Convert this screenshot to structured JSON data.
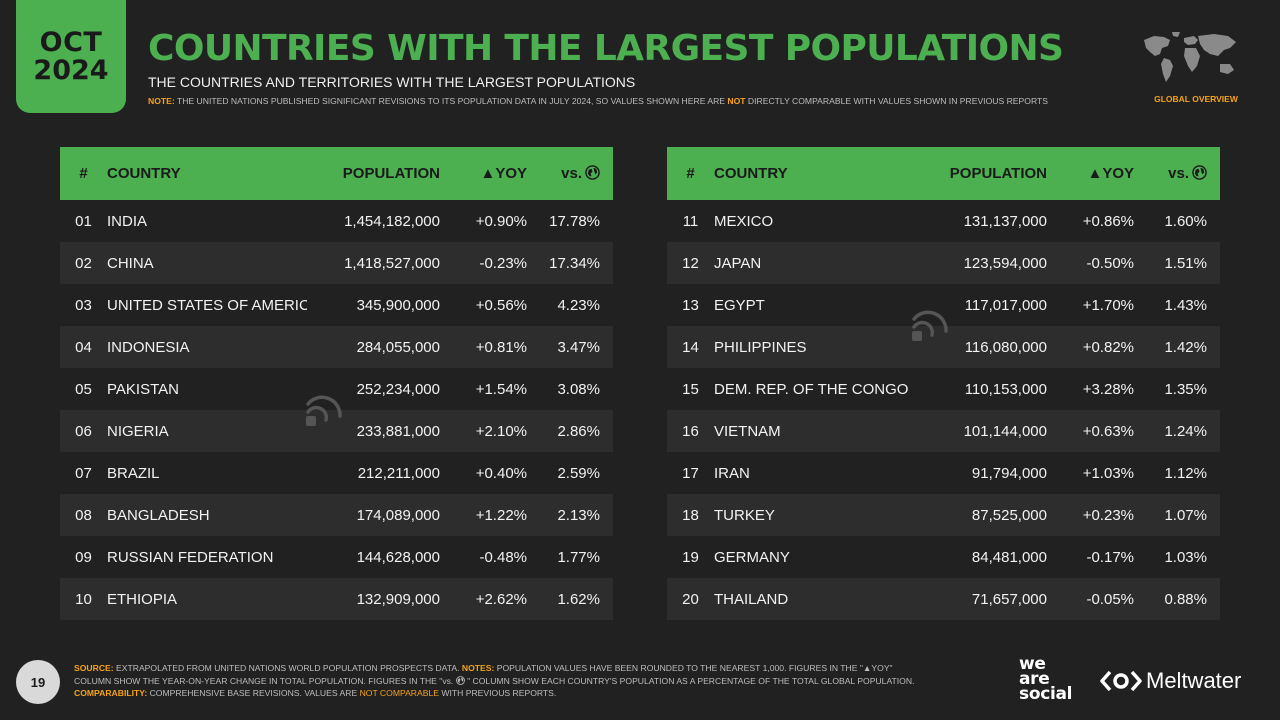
{
  "header": {
    "month": "OCT",
    "year": "2024",
    "title": "COUNTRIES WITH THE LARGEST POPULATIONS",
    "subtitle": "THE COUNTRIES AND TERRITORIES WITH THE LARGEST POPULATIONS",
    "note_label": "NOTE:",
    "note_text_1": " THE UNITED NATIONS PUBLISHED SIGNIFICANT REVISIONS TO ITS POPULATION DATA IN JULY 2024, SO VALUES SHOWN HERE ARE ",
    "note_not": "NOT",
    "note_text_2": " DIRECTLY COMPARABLE WITH VALUES SHOWN IN PREVIOUS REPORTS",
    "section_label": "GLOBAL OVERVIEW"
  },
  "columns": {
    "rank": "#",
    "country": "COUNTRY",
    "population": "POPULATION",
    "yoy": "▲YOY",
    "share": "vs."
  },
  "left_rows": [
    {
      "rank": "01",
      "country": "INDIA",
      "population": "1,454,182,000",
      "yoy": "+0.90%",
      "share": "17.78%"
    },
    {
      "rank": "02",
      "country": "CHINA",
      "population": "1,418,527,000",
      "yoy": "-0.23%",
      "share": "17.34%"
    },
    {
      "rank": "03",
      "country": "UNITED STATES OF AMERICA",
      "population": "345,900,000",
      "yoy": "+0.56%",
      "share": "4.23%"
    },
    {
      "rank": "04",
      "country": "INDONESIA",
      "population": "284,055,000",
      "yoy": "+0.81%",
      "share": "3.47%"
    },
    {
      "rank": "05",
      "country": "PAKISTAN",
      "population": "252,234,000",
      "yoy": "+1.54%",
      "share": "3.08%"
    },
    {
      "rank": "06",
      "country": "NIGERIA",
      "population": "233,881,000",
      "yoy": "+2.10%",
      "share": "2.86%"
    },
    {
      "rank": "07",
      "country": "BRAZIL",
      "population": "212,211,000",
      "yoy": "+0.40%",
      "share": "2.59%"
    },
    {
      "rank": "08",
      "country": "BANGLADESH",
      "population": "174,089,000",
      "yoy": "+1.22%",
      "share": "2.13%"
    },
    {
      "rank": "09",
      "country": "RUSSIAN FEDERATION",
      "population": "144,628,000",
      "yoy": "-0.48%",
      "share": "1.77%"
    },
    {
      "rank": "10",
      "country": "ETHIOPIA",
      "population": "132,909,000",
      "yoy": "+2.62%",
      "share": "1.62%"
    }
  ],
  "right_rows": [
    {
      "rank": "11",
      "country": "MEXICO",
      "population": "131,137,000",
      "yoy": "+0.86%",
      "share": "1.60%"
    },
    {
      "rank": "12",
      "country": "JAPAN",
      "population": "123,594,000",
      "yoy": "-0.50%",
      "share": "1.51%"
    },
    {
      "rank": "13",
      "country": "EGYPT",
      "population": "117,017,000",
      "yoy": "+1.70%",
      "share": "1.43%"
    },
    {
      "rank": "14",
      "country": "PHILIPPINES",
      "population": "116,080,000",
      "yoy": "+0.82%",
      "share": "1.42%"
    },
    {
      "rank": "15",
      "country": "DEM. REP. OF THE CONGO",
      "population": "110,153,000",
      "yoy": "+3.28%",
      "share": "1.35%"
    },
    {
      "rank": "16",
      "country": "VIETNAM",
      "population": "101,144,000",
      "yoy": "+0.63%",
      "share": "1.24%"
    },
    {
      "rank": "17",
      "country": "IRAN",
      "population": "91,794,000",
      "yoy": "+1.03%",
      "share": "1.12%"
    },
    {
      "rank": "18",
      "country": "TURKEY",
      "population": "87,525,000",
      "yoy": "+0.23%",
      "share": "1.07%"
    },
    {
      "rank": "19",
      "country": "GERMANY",
      "population": "84,481,000",
      "yoy": "-0.17%",
      "share": "1.03%"
    },
    {
      "rank": "20",
      "country": "THAILAND",
      "population": "71,657,000",
      "yoy": "-0.05%",
      "share": "0.88%"
    }
  ],
  "footer": {
    "page_number": "19",
    "source_label": "SOURCE:",
    "source_text": " EXTRAPOLATED FROM UNITED NATIONS WORLD POPULATION PROSPECTS DATA. ",
    "notes_label": "NOTES:",
    "notes_text_1": " POPULATION VALUES HAVE BEEN ROUNDED TO THE NEAREST 1,000. FIGURES IN THE \"▲YOY\"",
    "notes_text_2": "COLUMN SHOW THE YEAR-ON-YEAR CHANGE IN TOTAL POPULATION. FIGURES IN THE \"vs. ",
    "notes_text_3": " \" COLUMN SHOW EACH COUNTRY'S POPULATION AS A PERCENTAGE OF THE TOTAL GLOBAL POPULATION.",
    "comparability_label": "COMPARABILITY:",
    "comparability_text_1": " COMPREHENSIVE BASE REVISIONS. VALUES ARE ",
    "comparability_not": "NOT COMPARABLE",
    "comparability_text_2": " WITH PREVIOUS REPORTS."
  },
  "brands": {
    "was_line1": "we",
    "was_line2": "are",
    "was_line3": "social",
    "meltwater": "Meltwater"
  },
  "colors": {
    "accent_green": "#4caf50",
    "highlight_orange": "#f6a21a",
    "background": "#212121"
  }
}
